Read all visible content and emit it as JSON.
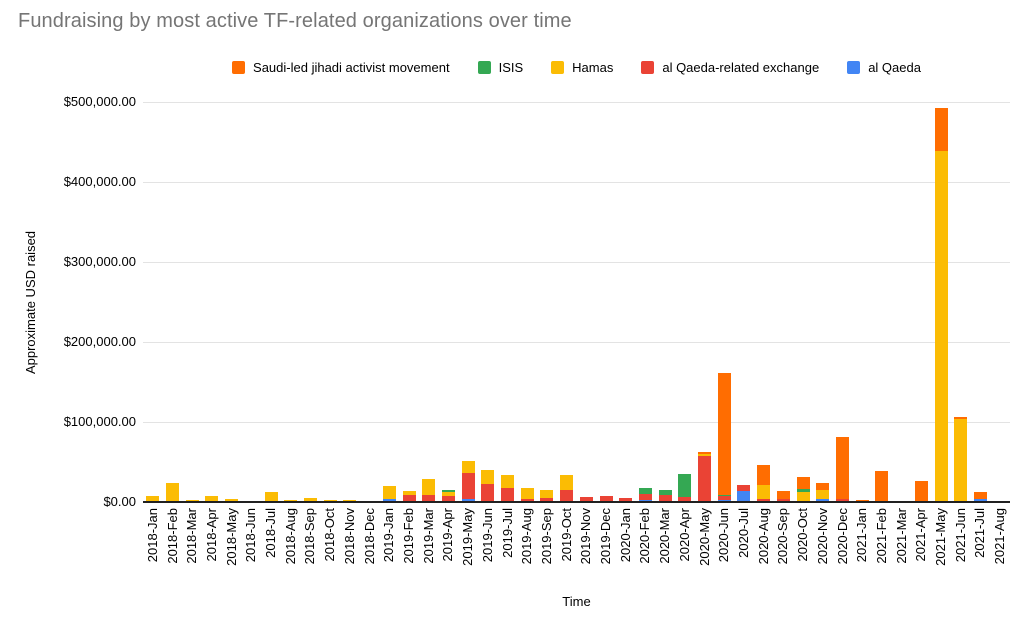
{
  "page": {
    "background": "#ffffff"
  },
  "chart_data": {
    "type": "bar",
    "stacked": true,
    "title": "Fundraising by most active TF-related organizations over time",
    "title_color": "#757575",
    "xlabel": "Time",
    "ylabel": "Approximate USD raised",
    "ylim": [
      0,
      500000
    ],
    "grid": true,
    "legend_position": "top",
    "y_ticks": [
      "$0.00",
      "$100,000.00",
      "$200,000.00",
      "$300,000.00",
      "$400,000.00",
      "$500,000.00"
    ],
    "categories": [
      "2018-Jan",
      "2018-Feb",
      "2018-Mar",
      "2018-Apr",
      "2018-May",
      "2018-Jun",
      "2018-Jul",
      "2018-Aug",
      "2018-Sep",
      "2018-Oct",
      "2018-Nov",
      "2018-Dec",
      "2019-Jan",
      "2019-Feb",
      "2019-Mar",
      "2019-Apr",
      "2019-May",
      "2019-Jun",
      "2019-Jul",
      "2019-Aug",
      "2019-Sep",
      "2019-Oct",
      "2019-Nov",
      "2019-Dec",
      "2020-Jan",
      "2020-Feb",
      "2020-Mar",
      "2020-Apr",
      "2020-May",
      "2020-Jun",
      "2020-Jul",
      "2020-Aug",
      "2020-Sep",
      "2020-Oct",
      "2020-Nov",
      "2020-Dec",
      "2021-Jan",
      "2021-Feb",
      "2021-Mar",
      "2021-Apr",
      "2021-May",
      "2021-Jun",
      "2021-Jul",
      "2021-Aug"
    ],
    "series": [
      {
        "name": "Saudi-led jihadi activist movement",
        "color": "#FF6D01",
        "values": [
          0,
          0,
          0,
          0,
          0,
          0,
          0,
          0,
          0,
          0,
          0,
          0,
          0,
          0,
          0,
          0,
          0,
          0,
          0,
          0,
          0,
          0,
          0,
          0,
          0,
          0,
          0,
          0,
          2500,
          153000,
          0,
          26000,
          11000,
          16000,
          9000,
          78000,
          1300,
          38000,
          0,
          25000,
          54000,
          3000,
          9000,
          0
        ]
      },
      {
        "name": "ISIS",
        "color": "#34A853",
        "values": [
          0,
          0,
          0,
          0,
          0,
          0,
          0,
          0,
          0,
          0,
          0,
          0,
          0,
          0,
          0,
          3000,
          0,
          0,
          0,
          0,
          0,
          0,
          0,
          0,
          0,
          7000,
          6000,
          28000,
          0,
          1500,
          0,
          0,
          0,
          3500,
          0,
          0,
          0,
          0,
          0,
          0,
          0,
          0,
          0,
          0
        ]
      },
      {
        "name": "Hamas",
        "color": "#FBBC04",
        "values": [
          6000,
          22000,
          1300,
          6000,
          2500,
          0,
          11000,
          1500,
          3500,
          500,
          1000,
          0,
          17000,
          5000,
          21000,
          5000,
          15000,
          18000,
          17000,
          14000,
          10000,
          19000,
          0,
          0,
          0,
          0,
          0,
          0,
          3000,
          0,
          0,
          17000,
          0,
          11000,
          11000,
          0,
          0,
          0,
          0,
          0,
          437000,
          102000,
          0,
          0
        ]
      },
      {
        "name": "al Qaeda-related exchange",
        "color": "#EA4335",
        "values": [
          0,
          0,
          0,
          0,
          0,
          0,
          0,
          0,
          0,
          0,
          0,
          0,
          0,
          8000,
          7000,
          6000,
          33000,
          21000,
          16000,
          2500,
          4000,
          14000,
          5000,
          6000,
          4000,
          8000,
          7500,
          5500,
          56000,
          4500,
          8000,
          2500,
          2000,
          0,
          0,
          2000,
          0,
          0,
          0,
          0,
          0,
          0,
          0,
          0
        ]
      },
      {
        "name": "al Qaeda",
        "color": "#4285F4",
        "values": [
          0,
          0,
          0,
          0,
          0,
          0,
          0,
          0,
          0,
          0,
          0,
          0,
          2000,
          0,
          0,
          0,
          2000,
          0,
          0,
          0,
          0,
          0,
          0,
          0,
          0,
          1000,
          0,
          0,
          0,
          1500,
          12000,
          0,
          0,
          0,
          3000,
          0,
          0,
          0,
          0,
          0,
          0,
          0,
          2000,
          0
        ]
      }
    ],
    "stack_order_bottom_to_top": [
      "al Qaeda",
      "al Qaeda-related exchange",
      "Hamas",
      "ISIS",
      "Saudi-led jihadi activist movement"
    ]
  }
}
